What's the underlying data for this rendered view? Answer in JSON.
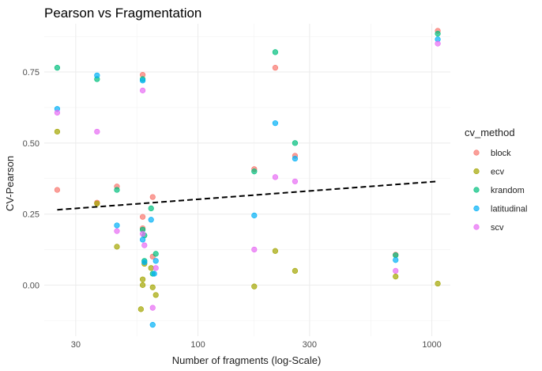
{
  "chart_data": {
    "type": "scatter",
    "title": "Pearson vs Fragmentation",
    "xlabel": "Number of fragments (log-Scale)",
    "ylabel": "CV-Pearson",
    "x_scale": "log10",
    "xlim": [
      22,
      1200
    ],
    "ylim": [
      -0.18,
      0.92
    ],
    "x_ticks": [
      30,
      100,
      300,
      1000
    ],
    "x_tick_labels": [
      "30",
      "100",
      "300",
      "1000"
    ],
    "y_ticks": [
      0,
      0.25,
      0.5,
      0.75
    ],
    "y_tick_labels": [
      "0.00",
      "0.25",
      "0.50",
      "0.75"
    ],
    "grid": true,
    "legend": {
      "title": "cv_method",
      "position": "right"
    },
    "series": [
      {
        "name": "block",
        "color": "#F8766D",
        "points": [
          {
            "x": 25,
            "y": 0.335
          },
          {
            "x": 37,
            "y": 0.29
          },
          {
            "x": 45,
            "y": 0.347
          },
          {
            "x": 58,
            "y": 0.74
          },
          {
            "x": 58,
            "y": 0.24
          },
          {
            "x": 58,
            "y": 0.2
          },
          {
            "x": 64,
            "y": 0.31
          },
          {
            "x": 64,
            "y": 0.1
          },
          {
            "x": 174,
            "y": 0.408
          },
          {
            "x": 214,
            "y": 0.765
          },
          {
            "x": 260,
            "y": 0.455
          },
          {
            "x": 700,
            "y": 0.107
          },
          {
            "x": 1060,
            "y": 0.895
          }
        ]
      },
      {
        "name": "ecv",
        "color": "#A3A500",
        "points": [
          {
            "x": 25,
            "y": 0.54
          },
          {
            "x": 37,
            "y": 0.287
          },
          {
            "x": 45,
            "y": 0.135
          },
          {
            "x": 57,
            "y": -0.085
          },
          {
            "x": 58,
            "y": 0.02
          },
          {
            "x": 58,
            "y": 0.0
          },
          {
            "x": 59,
            "y": 0.075
          },
          {
            "x": 63,
            "y": 0.06
          },
          {
            "x": 64,
            "y": -0.008
          },
          {
            "x": 66,
            "y": -0.035
          },
          {
            "x": 174,
            "y": -0.005
          },
          {
            "x": 214,
            "y": 0.12
          },
          {
            "x": 260,
            "y": 0.05
          },
          {
            "x": 700,
            "y": 0.03
          },
          {
            "x": 1060,
            "y": 0.005
          }
        ]
      },
      {
        "name": "krandom",
        "color": "#00BF7D",
        "points": [
          {
            "x": 25,
            "y": 0.765
          },
          {
            "x": 37,
            "y": 0.725
          },
          {
            "x": 45,
            "y": 0.335
          },
          {
            "x": 58,
            "y": 0.725
          },
          {
            "x": 58,
            "y": 0.195
          },
          {
            "x": 59,
            "y": 0.085
          },
          {
            "x": 59,
            "y": 0.175
          },
          {
            "x": 63,
            "y": 0.27
          },
          {
            "x": 64,
            "y": 0.04
          },
          {
            "x": 66,
            "y": 0.11
          },
          {
            "x": 174,
            "y": 0.4
          },
          {
            "x": 214,
            "y": 0.82
          },
          {
            "x": 260,
            "y": 0.5
          },
          {
            "x": 700,
            "y": 0.105
          },
          {
            "x": 1060,
            "y": 0.885
          }
        ]
      },
      {
        "name": "latitudinal",
        "color": "#00B0F6",
        "points": [
          {
            "x": 25,
            "y": 0.62
          },
          {
            "x": 37,
            "y": 0.738
          },
          {
            "x": 45,
            "y": 0.21
          },
          {
            "x": 58,
            "y": 0.72
          },
          {
            "x": 58,
            "y": 0.16
          },
          {
            "x": 59,
            "y": 0.08
          },
          {
            "x": 63,
            "y": 0.23
          },
          {
            "x": 64,
            "y": -0.14
          },
          {
            "x": 65,
            "y": 0.04
          },
          {
            "x": 66,
            "y": 0.085
          },
          {
            "x": 174,
            "y": 0.245
          },
          {
            "x": 214,
            "y": 0.57
          },
          {
            "x": 260,
            "y": 0.445
          },
          {
            "x": 700,
            "y": 0.088
          },
          {
            "x": 1060,
            "y": 0.865
          }
        ]
      },
      {
        "name": "scv",
        "color": "#E76BF3",
        "points": [
          {
            "x": 25,
            "y": 0.607
          },
          {
            "x": 37,
            "y": 0.54
          },
          {
            "x": 45,
            "y": 0.19
          },
          {
            "x": 58,
            "y": 0.685
          },
          {
            "x": 58,
            "y": 0.18
          },
          {
            "x": 59,
            "y": 0.14
          },
          {
            "x": 64,
            "y": -0.08
          },
          {
            "x": 66,
            "y": 0.06
          },
          {
            "x": 174,
            "y": 0.125
          },
          {
            "x": 214,
            "y": 0.38
          },
          {
            "x": 260,
            "y": 0.365
          },
          {
            "x": 700,
            "y": 0.05
          },
          {
            "x": 1060,
            "y": 0.85
          }
        ]
      }
    ],
    "trend_line": {
      "style": "dashed",
      "color": "#000000",
      "points": [
        {
          "x": 25,
          "y": 0.265
        },
        {
          "x": 1060,
          "y": 0.365
        }
      ]
    }
  }
}
